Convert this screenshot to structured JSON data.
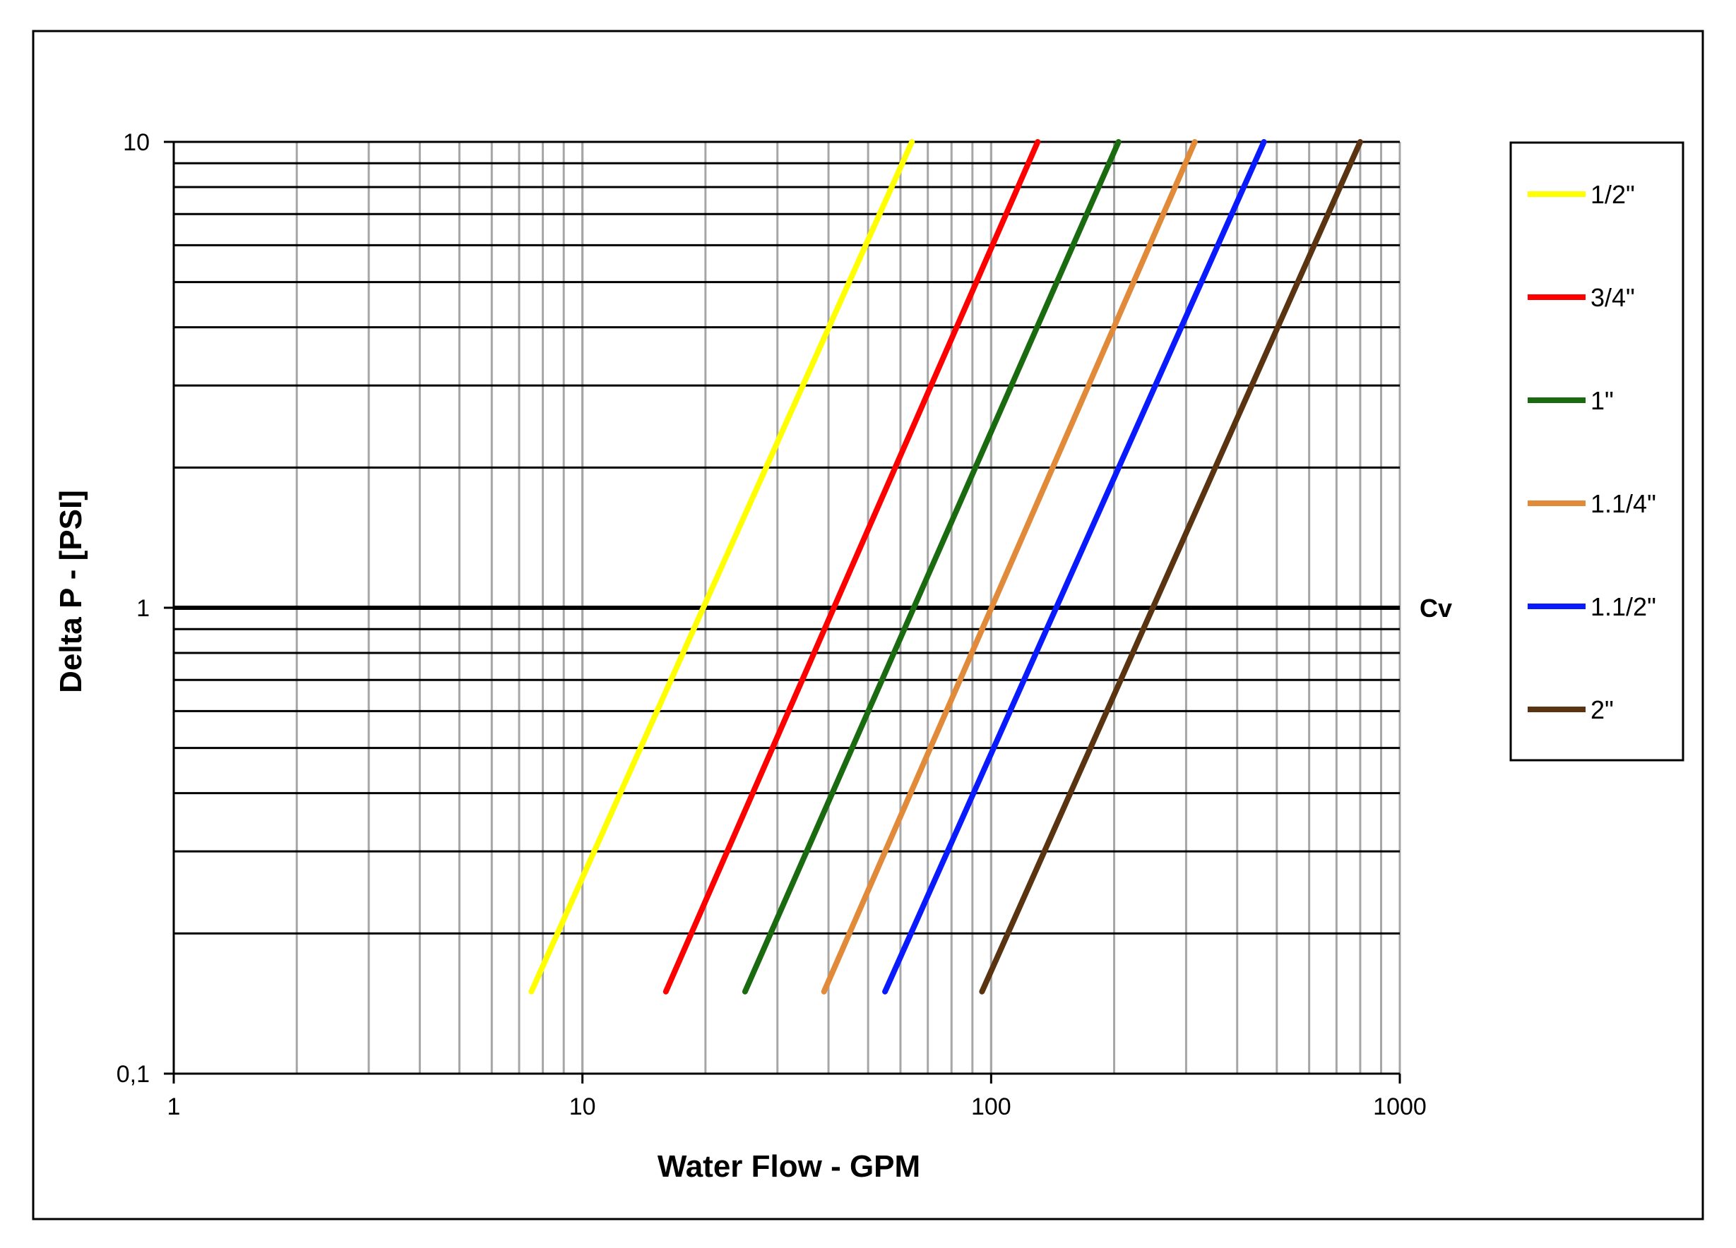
{
  "chart_data": {
    "type": "line",
    "xlabel": "Water Flow  - GPM",
    "ylabel": "Delta P - [PSI]",
    "xscale": "log",
    "yscale": "log",
    "xlim": [
      1,
      1000
    ],
    "ylim": [
      0.1,
      10
    ],
    "x_tick_labels": [
      {
        "value": 1,
        "label": "1"
      },
      {
        "value": 10,
        "label": "10"
      },
      {
        "value": 100,
        "label": "100"
      },
      {
        "value": 1000,
        "label": "1000"
      }
    ],
    "y_tick_labels": [
      {
        "value": 0.1,
        "label": "0,1"
      },
      {
        "value": 1,
        "label": "1"
      },
      {
        "value": 10,
        "label": "10"
      }
    ],
    "grid": true,
    "legend_position": "right",
    "reference_line": {
      "y": 1,
      "label": "Cv"
    },
    "series": [
      {
        "name": "1/2\"",
        "color": "#ffff00",
        "points": [
          [
            7.5,
            0.15
          ],
          [
            64,
            10
          ]
        ]
      },
      {
        "name": "3/4\"",
        "color": "#ff0000",
        "points": [
          [
            16,
            0.15
          ],
          [
            130,
            10
          ]
        ]
      },
      {
        "name": "1\"",
        "color": "#1a6b10",
        "points": [
          [
            25,
            0.15
          ],
          [
            205,
            10
          ]
        ]
      },
      {
        "name": "1.1/4\"",
        "color": "#e08a3a",
        "points": [
          [
            39,
            0.15
          ],
          [
            315,
            10
          ]
        ]
      },
      {
        "name": "1.1/2\"",
        "color": "#0a1aff",
        "points": [
          [
            55,
            0.15
          ],
          [
            465,
            10
          ]
        ]
      },
      {
        "name": "2\"",
        "color": "#5a3310",
        "points": [
          [
            95,
            0.15
          ],
          [
            800,
            10
          ]
        ]
      }
    ]
  }
}
